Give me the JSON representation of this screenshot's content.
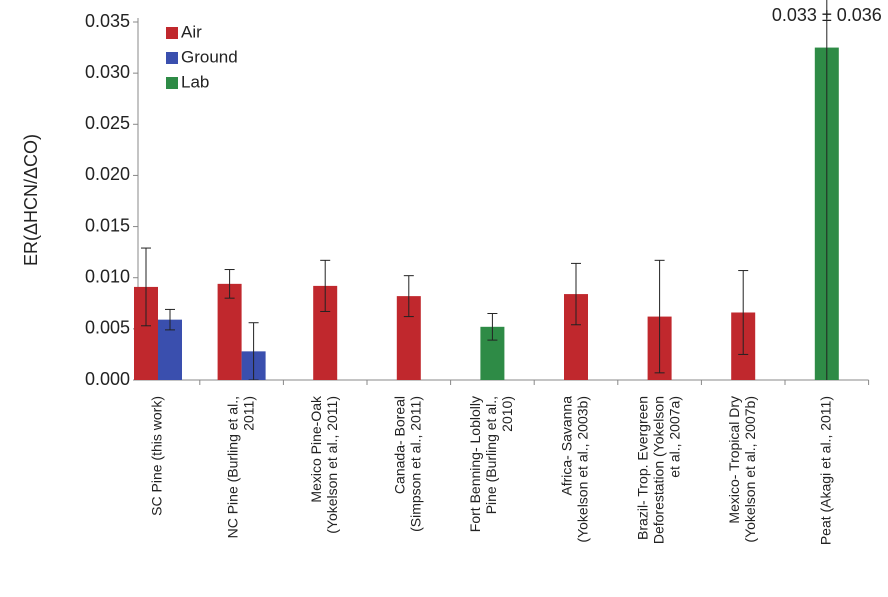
{
  "chart_data": {
    "type": "bar",
    "y_label": "ER(ΔHCN/ΔCO)",
    "categories": [
      [
        "SC Pine (this work)"
      ],
      [
        "NC Pine (Burling et al.,",
        "2011)"
      ],
      [
        "Mexico Pine-Oak",
        "(Yokelson et al., 2011)"
      ],
      [
        "Canada- Boreal",
        "(Simpson et al., 2011)"
      ],
      [
        "Fort Benning- Loblolly",
        "Pine (Burling et al.,",
        "2010)"
      ],
      [
        "Africa- Savanna",
        "(Yokelson et al., 2003b)"
      ],
      [
        "Brazil- Trop. Evergreen",
        "Deforestation (Yokelson",
        "et al., 2007a)"
      ],
      [
        "Mexico- Tropical Dry",
        "(Yokelson et al., 2007b)"
      ],
      [
        "Peat (Akagi et al., 2011)"
      ]
    ],
    "series": [
      {
        "name": "Air",
        "color": "#c0282d",
        "values": [
          0.0091,
          0.0094,
          0.0092,
          0.0082,
          null,
          0.0084,
          0.0062,
          0.0066,
          null
        ],
        "errors": [
          0.0038,
          0.0014,
          0.0025,
          0.002,
          null,
          0.003,
          0.0055,
          0.0041,
          null
        ]
      },
      {
        "name": "Ground",
        "color": "#3a4fae",
        "values": [
          0.0059,
          0.0028,
          null,
          null,
          null,
          null,
          null,
          null,
          null
        ],
        "errors": [
          0.001,
          0.0028,
          null,
          null,
          null,
          null,
          null,
          null,
          null
        ]
      },
      {
        "name": "Lab",
        "color": "#2e8b46",
        "values": [
          null,
          null,
          null,
          null,
          0.0052,
          null,
          null,
          null,
          0.0325
        ],
        "errors": [
          null,
          null,
          null,
          null,
          0.0013,
          null,
          null,
          null,
          0.036
        ],
        "value_labels": [
          null,
          null,
          null,
          null,
          null,
          null,
          null,
          null,
          "0.033 ± 0.036"
        ]
      }
    ],
    "ylim": [
      0,
      0.035
    ],
    "yticks": [
      {
        "value": 0,
        "label": "0.000"
      },
      0.005,
      {
        "value": 0.01,
        "label": "0.010"
      },
      0.015,
      {
        "value": 0.02,
        "label": "0.020"
      },
      0.025,
      {
        "value": 0.03,
        "label": "0.030"
      },
      0.035
    ],
    "legend": "upper-left",
    "grid": false
  }
}
